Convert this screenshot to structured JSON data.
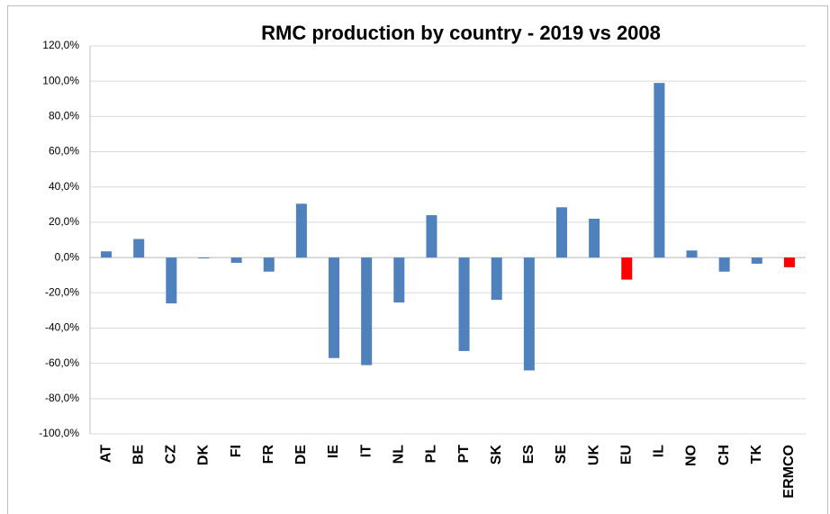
{
  "chart_data": {
    "type": "bar",
    "title": "RMC production by country - 2019 vs 2008",
    "categories": [
      "AT",
      "BE",
      "CZ",
      "DK",
      "FI",
      "FR",
      "DE",
      "IE",
      "IT",
      "NL",
      "PL",
      "PT",
      "SK",
      "ES",
      "SE",
      "UK",
      "EU",
      "IL",
      "NO",
      "CH",
      "TK",
      "ERMCO"
    ],
    "values": [
      3.5,
      10.5,
      -26,
      -0.5,
      -3,
      -8,
      30.5,
      -57,
      -61,
      -25.5,
      24,
      -53,
      -24,
      -64,
      28.5,
      22,
      -12.5,
      99,
      4,
      -8,
      -3.5,
      -5.5
    ],
    "colors": [
      "#4f81bd",
      "#4f81bd",
      "#4f81bd",
      "#4f81bd",
      "#4f81bd",
      "#4f81bd",
      "#4f81bd",
      "#4f81bd",
      "#4f81bd",
      "#4f81bd",
      "#4f81bd",
      "#4f81bd",
      "#4f81bd",
      "#4f81bd",
      "#4f81bd",
      "#4f81bd",
      "#ff0000",
      "#4f81bd",
      "#4f81bd",
      "#4f81bd",
      "#4f81bd",
      "#ff0000"
    ],
    "ylim": [
      -100,
      120
    ],
    "yticks": [
      {
        "value": -100,
        "label": "-100,0%"
      },
      {
        "value": -80,
        "label": "-80,0%"
      },
      {
        "value": -60,
        "label": "-60,0%"
      },
      {
        "value": -40,
        "label": "-40,0%"
      },
      {
        "value": -20,
        "label": "-20,0%"
      },
      {
        "value": 0,
        "label": "0,0%"
      },
      {
        "value": 20,
        "label": "20,0%"
      },
      {
        "value": 40,
        "label": "40,0%"
      },
      {
        "value": 60,
        "label": "60,0%"
      },
      {
        "value": 80,
        "label": "80,0%"
      },
      {
        "value": 100,
        "label": "100,0%"
      },
      {
        "value": 120,
        "label": "120,0%"
      }
    ],
    "grid": true
  }
}
